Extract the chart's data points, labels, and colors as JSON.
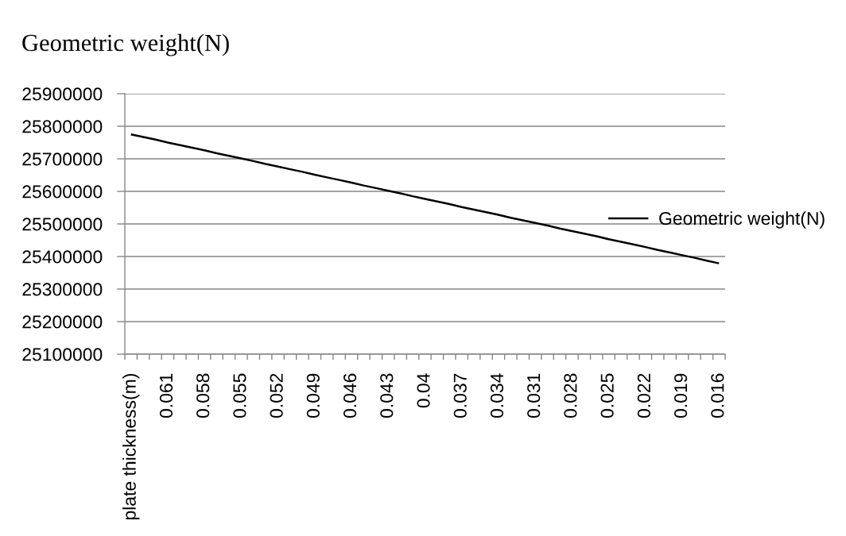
{
  "chart_data": {
    "type": "line",
    "title": "Geometric weight(N)",
    "categories": [
      "plate thickness(m)",
      null,
      null,
      "0.061",
      null,
      null,
      "0.058",
      null,
      null,
      "0.055",
      null,
      null,
      "0.052",
      null,
      null,
      "0.049",
      null,
      null,
      "0.046",
      null,
      null,
      "0.043",
      null,
      null,
      "0.04",
      null,
      null,
      "0.037",
      null,
      null,
      "0.034",
      null,
      null,
      "0.031",
      null,
      null,
      "0.028",
      null,
      null,
      "0.025",
      null,
      null,
      "0.022",
      null,
      null,
      "0.019",
      null,
      null,
      "0.016"
    ],
    "series": [
      {
        "name": "Geometric weight(N)",
        "color": "#000000",
        "values": [
          25775000,
          25767000,
          25759000,
          25750000,
          25742000,
          25734000,
          25726000,
          25717000,
          25709000,
          25701000,
          25693000,
          25684000,
          25676000,
          25668000,
          25660000,
          25651000,
          25643000,
          25635000,
          25627000,
          25618000,
          25610000,
          25602000,
          25594000,
          25585000,
          25577000,
          25569000,
          25561000,
          25552000,
          25544000,
          25536000,
          25528000,
          25519000,
          25511000,
          25503000,
          25495000,
          25486000,
          25478000,
          25470000,
          25462000,
          25453000,
          25445000,
          25437000,
          25429000,
          25420000,
          25412000,
          25404000,
          25396000,
          25387000,
          25379000
        ]
      }
    ],
    "ylim": [
      25100000,
      25900000
    ],
    "yticks": [
      25100000,
      25200000,
      25300000,
      25400000,
      25500000,
      25600000,
      25700000,
      25800000,
      25900000
    ],
    "grid": "y",
    "legend": "right",
    "line_style": "solid"
  }
}
